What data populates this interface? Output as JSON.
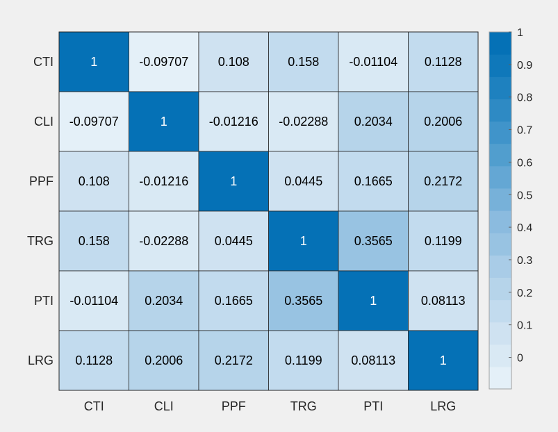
{
  "chart_data": {
    "type": "heatmap",
    "x_labels": [
      "CTI",
      "CLI",
      "PPF",
      "TRG",
      "PTI",
      "LRG"
    ],
    "y_labels": [
      "CTI",
      "CLI",
      "PPF",
      "TRG",
      "PTI",
      "LRG"
    ],
    "cell_labels": [
      [
        "1",
        "-0.09707",
        "0.108",
        "0.158",
        "-0.01104",
        "0.1128"
      ],
      [
        "-0.09707",
        "1",
        "-0.01216",
        "-0.02288",
        "0.2034",
        "0.2006"
      ],
      [
        "0.108",
        "-0.01216",
        "1",
        "0.0445",
        "0.1665",
        "0.2172"
      ],
      [
        "0.158",
        "-0.02288",
        "0.0445",
        "1",
        "0.3565",
        "0.1199"
      ],
      [
        "-0.01104",
        "0.2034",
        "0.1665",
        "0.3565",
        "1",
        "0.08113"
      ],
      [
        "0.1128",
        "0.2006",
        "0.2172",
        "0.1199",
        "0.08113",
        "1"
      ]
    ],
    "values": [
      [
        1,
        -0.09707,
        0.108,
        0.158,
        -0.01104,
        0.1128
      ],
      [
        -0.09707,
        1,
        -0.01216,
        -0.02288,
        0.2034,
        0.2006
      ],
      [
        0.108,
        -0.01216,
        1,
        0.0445,
        0.1665,
        0.2172
      ],
      [
        0.158,
        -0.02288,
        0.0445,
        1,
        0.3565,
        0.1199
      ],
      [
        -0.01104,
        0.2034,
        0.1665,
        0.3565,
        1,
        0.08113
      ],
      [
        0.1128,
        0.2006,
        0.2172,
        0.1199,
        0.08113,
        1
      ]
    ],
    "colorbar": {
      "range": [
        -0.09707,
        1
      ],
      "ticks": [
        0,
        0.1,
        0.2,
        0.3,
        0.4,
        0.5,
        0.6,
        0.7,
        0.8,
        0.9,
        1
      ],
      "tick_labels": [
        "0",
        "0.1",
        "0.2",
        "0.3",
        "0.4",
        "0.5",
        "0.6",
        "0.7",
        "0.8",
        "0.9",
        "1"
      ],
      "colors": [
        "#e4f0f8",
        "#d9e9f4",
        "#cfe2f1",
        "#c2dbee",
        "#b6d4ea",
        "#a9cce7",
        "#98c3e2",
        "#8bbbdf",
        "#77b1d9",
        "#64a7d4",
        "#519ece",
        "#4094ca",
        "#2e8ac4",
        "#1e81bf",
        "#0f78ba",
        "#0571b6"
      ]
    },
    "grid": false,
    "colors": {
      "background": "#f0f0f0",
      "border": "#262626",
      "text_dark": "#000000",
      "text_light": "#ffffff",
      "tick_text": "#262626"
    }
  }
}
